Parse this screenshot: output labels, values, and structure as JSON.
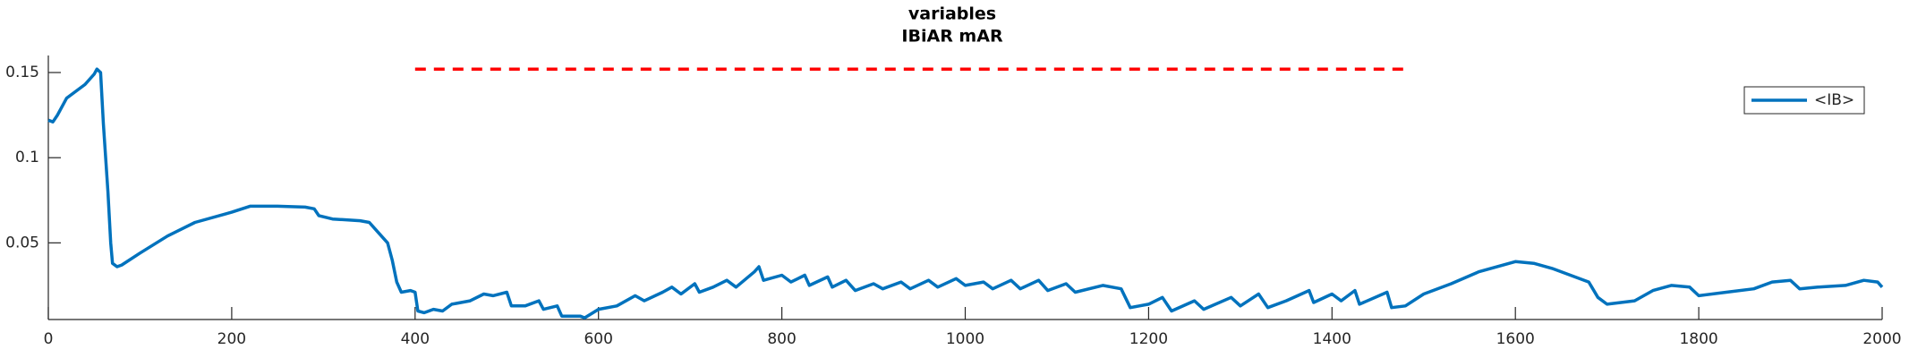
{
  "chart_data": {
    "type": "line",
    "title": "variables",
    "subtitle": "IBiAR mAR",
    "x": [
      0,
      5,
      10,
      20,
      40,
      50,
      53,
      57,
      60,
      65,
      68,
      70,
      75,
      80,
      100,
      130,
      160,
      200,
      220,
      250,
      280,
      290,
      295,
      310,
      340,
      350,
      360,
      370,
      375,
      380,
      385,
      395,
      400,
      403,
      410,
      420,
      430,
      440,
      460,
      475,
      485,
      500,
      505,
      520,
      535,
      540,
      555,
      560,
      580,
      585,
      600,
      620,
      640,
      650,
      670,
      680,
      690,
      705,
      710,
      725,
      740,
      750,
      770,
      775,
      780,
      800,
      810,
      825,
      830,
      850,
      855,
      870,
      880,
      900,
      910,
      930,
      940,
      960,
      970,
      990,
      1000,
      1020,
      1030,
      1050,
      1060,
      1080,
      1090,
      1110,
      1120,
      1150,
      1170,
      1180,
      1200,
      1215,
      1225,
      1250,
      1260,
      1290,
      1300,
      1320,
      1330,
      1350,
      1375,
      1380,
      1400,
      1410,
      1425,
      1430,
      1460,
      1465,
      1480,
      1500,
      1530,
      1560,
      1600,
      1620,
      1640,
      1660,
      1680,
      1690,
      1700,
      1730,
      1750,
      1770,
      1790,
      1800,
      1830,
      1860,
      1880,
      1900,
      1910,
      1930,
      1960,
      1980,
      1995,
      2000
    ],
    "series": [
      {
        "name": "<IB>",
        "color": "#0072bd",
        "values": [
          0.122,
          0.121,
          0.125,
          0.135,
          0.143,
          0.149,
          0.152,
          0.15,
          0.12,
          0.08,
          0.05,
          0.038,
          0.036,
          0.037,
          0.044,
          0.054,
          0.062,
          0.068,
          0.0715,
          0.0715,
          0.071,
          0.07,
          0.066,
          0.064,
          0.063,
          0.062,
          0.056,
          0.05,
          0.04,
          0.027,
          0.021,
          0.022,
          0.021,
          0.01,
          0.009,
          0.011,
          0.01,
          0.014,
          0.016,
          0.02,
          0.019,
          0.021,
          0.013,
          0.013,
          0.016,
          0.011,
          0.013,
          0.007,
          0.007,
          0.006,
          0.011,
          0.013,
          0.019,
          0.016,
          0.021,
          0.024,
          0.02,
          0.026,
          0.021,
          0.024,
          0.028,
          0.024,
          0.033,
          0.036,
          0.028,
          0.031,
          0.027,
          0.031,
          0.025,
          0.03,
          0.024,
          0.028,
          0.022,
          0.026,
          0.023,
          0.027,
          0.023,
          0.028,
          0.024,
          0.029,
          0.025,
          0.027,
          0.023,
          0.028,
          0.023,
          0.028,
          0.022,
          0.026,
          0.021,
          0.025,
          0.023,
          0.012,
          0.014,
          0.018,
          0.01,
          0.016,
          0.011,
          0.018,
          0.013,
          0.02,
          0.012,
          0.016,
          0.022,
          0.015,
          0.02,
          0.016,
          0.022,
          0.014,
          0.021,
          0.012,
          0.013,
          0.02,
          0.026,
          0.033,
          0.039,
          0.038,
          0.035,
          0.031,
          0.027,
          0.018,
          0.014,
          0.016,
          0.022,
          0.025,
          0.024,
          0.019,
          0.021,
          0.023,
          0.027,
          0.028,
          0.023,
          0.024,
          0.025,
          0.028,
          0.027,
          0.024
        ]
      }
    ],
    "reference_line": {
      "x": [
        400,
        1485
      ],
      "y": 0.152,
      "color": "#ff0000"
    },
    "xlim": [
      0,
      2000
    ],
    "xticks": [
      0,
      200,
      400,
      600,
      800,
      1000,
      1200,
      1400,
      1600,
      1800,
      2000
    ],
    "ylim": [
      0.005,
      0.16
    ],
    "yticks": [
      0.05,
      0.1,
      0.15
    ],
    "legend": "upper right"
  }
}
